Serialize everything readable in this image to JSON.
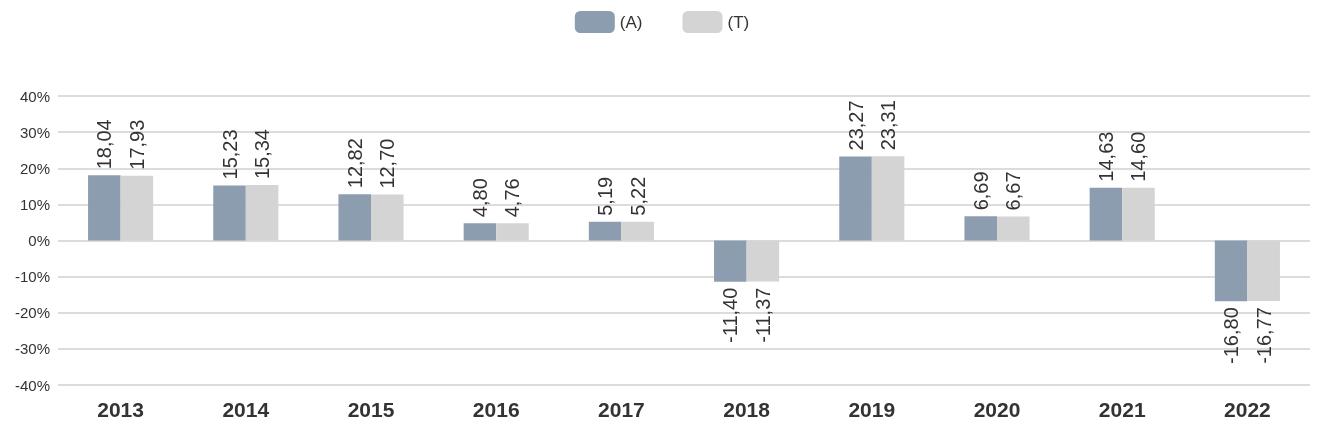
{
  "chart_data": {
    "type": "bar",
    "categories": [
      "2013",
      "2014",
      "2015",
      "2016",
      "2017",
      "2018",
      "2019",
      "2020",
      "2021",
      "2022"
    ],
    "series": [
      {
        "name": "(A)",
        "color": "#8c9daf",
        "values": [
          18.04,
          15.23,
          12.82,
          4.8,
          5.19,
          -11.4,
          23.27,
          6.69,
          14.63,
          -16.8
        ],
        "value_labels": [
          "18,04",
          "15,23",
          "12,82",
          "4,80",
          "5,19",
          "-11,40",
          "23,27",
          "6,69",
          "14,63",
          "-16,80"
        ]
      },
      {
        "name": "(T)",
        "color": "#d4d4d4",
        "values": [
          17.93,
          15.34,
          12.7,
          4.76,
          5.22,
          -11.37,
          23.31,
          6.67,
          14.6,
          -16.77
        ],
        "value_labels": [
          "17,93",
          "15,34",
          "12,70",
          "4,76",
          "5,22",
          "-11,37",
          "23,31",
          "6,67",
          "14,60",
          "-16,77"
        ]
      }
    ],
    "ylim": [
      -40,
      40
    ],
    "yticks": [
      {
        "value": -40,
        "label": "-40%"
      },
      {
        "value": -30,
        "label": "-30%"
      },
      {
        "value": -20,
        "label": "-20%"
      },
      {
        "value": -10,
        "label": "-10%"
      },
      {
        "value": 0,
        "label": "0%"
      },
      {
        "value": 10,
        "label": "10%"
      },
      {
        "value": 20,
        "label": "20%"
      },
      {
        "value": 30,
        "label": "30%"
      },
      {
        "value": 40,
        "label": "40%"
      }
    ],
    "grid": "y",
    "legend": "top"
  }
}
